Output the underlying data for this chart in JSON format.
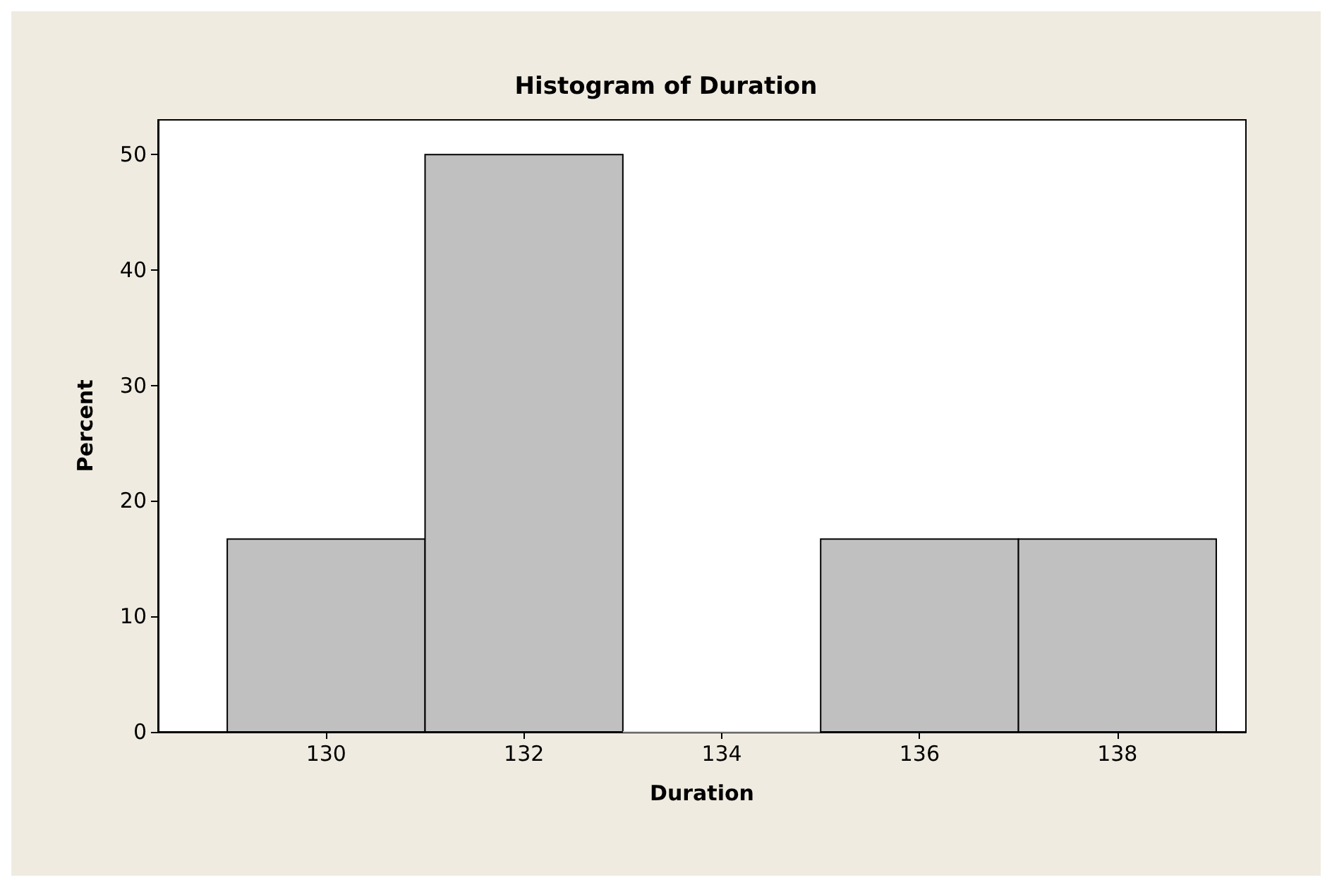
{
  "chart_data": {
    "type": "histogram",
    "title": "Histogram of Duration",
    "xlabel": "Duration",
    "ylabel": "Percent",
    "bins": [
      129,
      131,
      133,
      135,
      137,
      139
    ],
    "values": [
      16.7,
      50,
      0,
      16.7,
      16.7
    ],
    "color": "#c0c0c0",
    "xlim": [
      128.3,
      139.3
    ],
    "xticks": [
      130,
      132,
      134,
      136,
      138
    ],
    "ylim": [
      0,
      53
    ],
    "yticks": [
      0,
      10,
      20,
      30,
      40,
      50
    ],
    "grid": false
  }
}
